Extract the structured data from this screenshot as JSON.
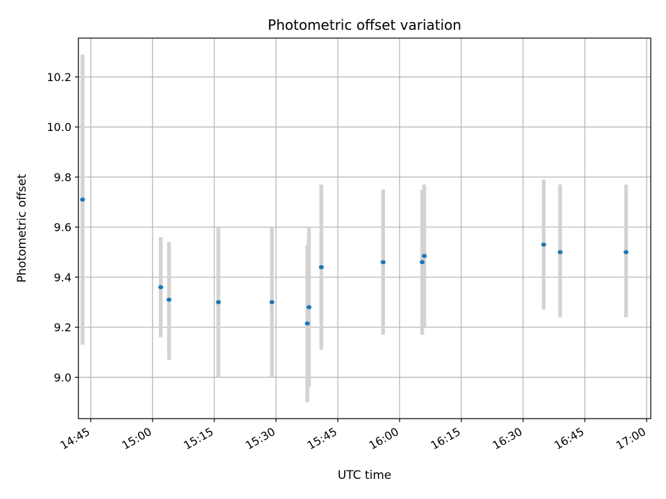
{
  "chart_data": {
    "type": "scatter",
    "title": "Photometric offset variation",
    "xlabel": "UTC time",
    "ylabel": "Photometric offset",
    "x_axis": "time",
    "xlim": [
      "14:42",
      "17:01"
    ],
    "ylim": [
      8.835,
      10.355
    ],
    "x_ticks": [
      "14:45",
      "15:00",
      "15:15",
      "15:30",
      "15:45",
      "16:00",
      "16:15",
      "16:30",
      "16:45",
      "17:00"
    ],
    "y_ticks": [
      9.0,
      9.2,
      9.4,
      9.6,
      9.8,
      10.0,
      10.2
    ],
    "y_tick_labels": [
      "9.0",
      "9.2",
      "9.4",
      "9.6",
      "9.8",
      "10.0",
      "10.2"
    ],
    "grid": true,
    "colors": {
      "marker": "#1f77b4",
      "errorbar": "#d3d3d3",
      "grid": "#b0b0b0"
    },
    "points": [
      {
        "x": "14:43",
        "y": 9.71,
        "ylow": 9.13,
        "yhigh": 10.29
      },
      {
        "x": "15:02",
        "y": 9.36,
        "ylow": 9.16,
        "yhigh": 9.56
      },
      {
        "x": "15:04",
        "y": 9.31,
        "ylow": 9.07,
        "yhigh": 9.54
      },
      {
        "x": "15:16",
        "y": 9.3,
        "ylow": 9.0,
        "yhigh": 9.6
      },
      {
        "x": "15:29",
        "y": 9.3,
        "ylow": 9.0,
        "yhigh": 9.6
      },
      {
        "x": "15:37.6",
        "y": 9.215,
        "ylow": 8.9,
        "yhigh": 9.53
      },
      {
        "x": "15:38",
        "y": 9.28,
        "ylow": 8.96,
        "yhigh": 9.6
      },
      {
        "x": "15:41",
        "y": 9.44,
        "ylow": 9.11,
        "yhigh": 9.77
      },
      {
        "x": "15:56",
        "y": 9.46,
        "ylow": 9.17,
        "yhigh": 9.75
      },
      {
        "x": "16:05.5",
        "y": 9.46,
        "ylow": 9.17,
        "yhigh": 9.75
      },
      {
        "x": "16:06",
        "y": 9.485,
        "ylow": 9.2,
        "yhigh": 9.77
      },
      {
        "x": "16:35",
        "y": 9.53,
        "ylow": 9.27,
        "yhigh": 9.79
      },
      {
        "x": "16:39",
        "y": 9.5,
        "ylow": 9.24,
        "yhigh": 9.77
      },
      {
        "x": "16:55",
        "y": 9.5,
        "ylow": 9.24,
        "yhigh": 9.77
      }
    ]
  }
}
